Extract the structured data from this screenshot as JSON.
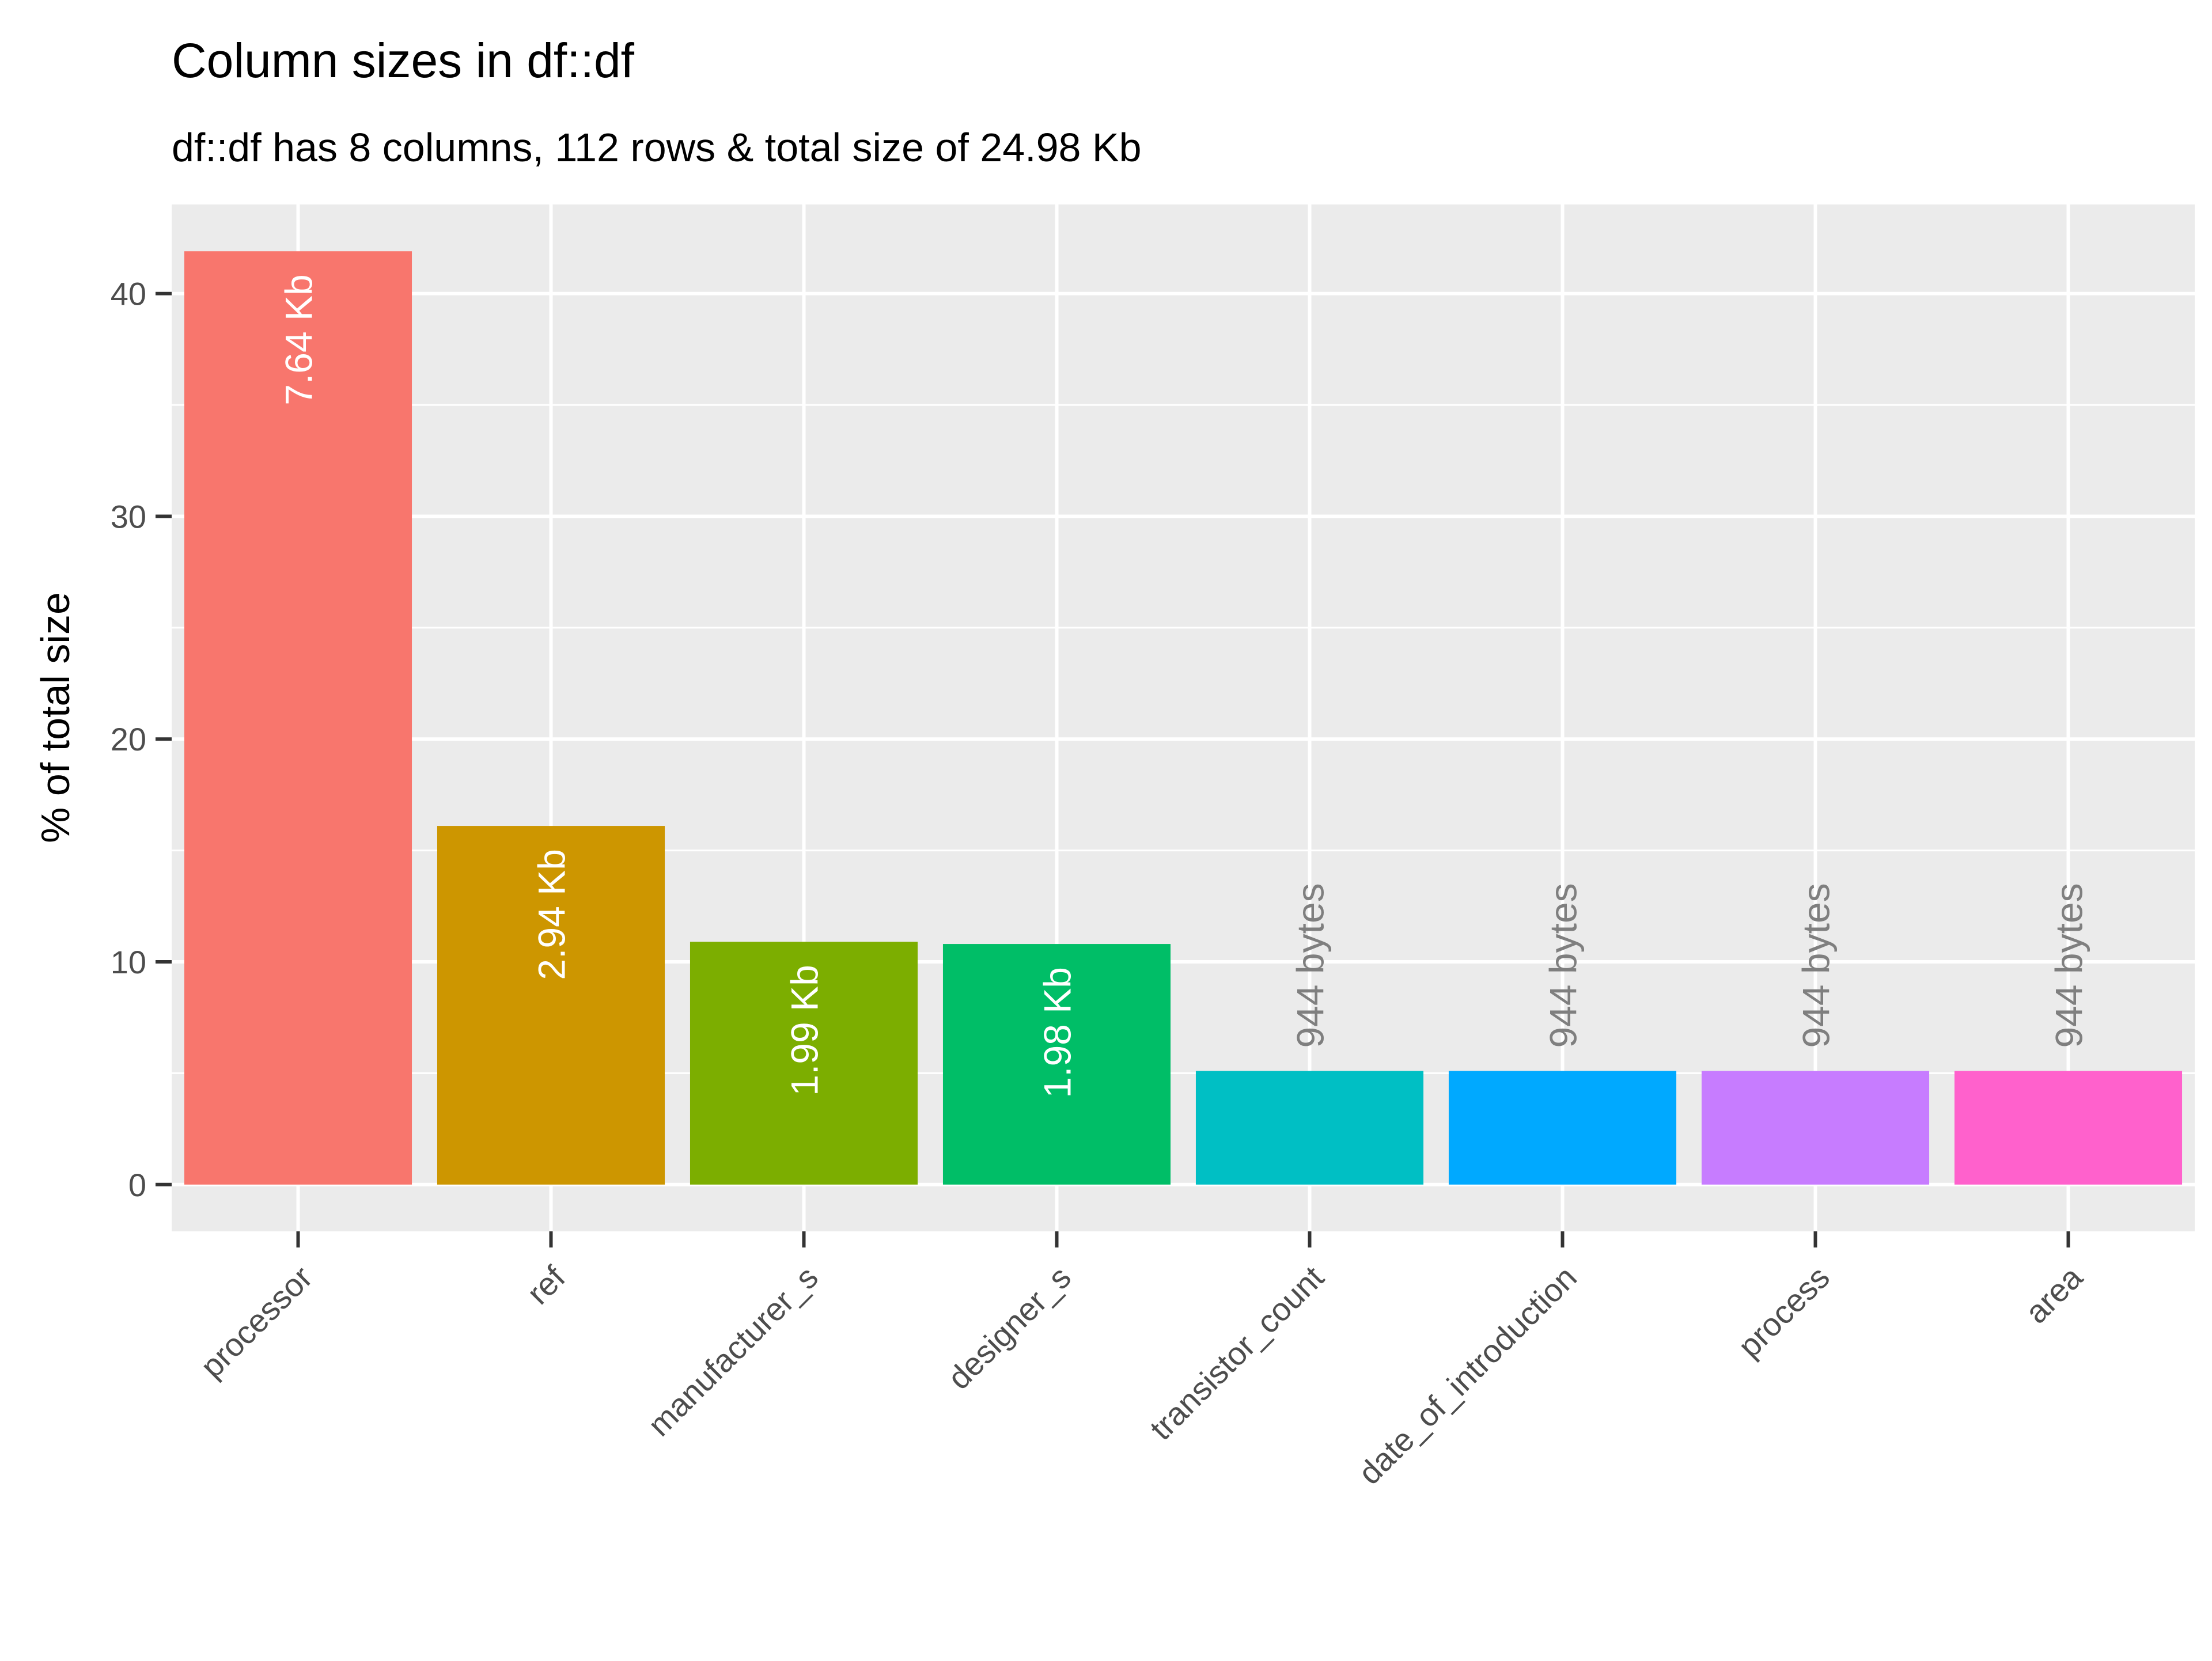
{
  "chart_data": {
    "type": "bar",
    "title": "Column sizes in df::df",
    "subtitle": "df::df has 8 columns, 112 rows & total size of 24.98 Kb",
    "xlabel": "",
    "ylabel": "% of total size",
    "ylim": [
      -2.1,
      44
    ],
    "yticks": [
      0,
      10,
      20,
      30,
      40
    ],
    "ytick_labels": [
      "0",
      "10",
      "20",
      "30",
      "40"
    ],
    "grid": true,
    "legend": "none",
    "categories": [
      "processor",
      "ref",
      "manufacturer_s",
      "designer_s",
      "transistor_count",
      "date_of_introduction",
      "process",
      "area"
    ],
    "values": [
      41.9,
      16.1,
      10.9,
      10.8,
      5.1,
      5.1,
      5.1,
      5.1
    ],
    "labels": [
      "7.64 Kb",
      "2.94 Kb",
      "1.99 Kb",
      "1.98 Kb",
      "944 bytes",
      "944 bytes",
      "944 bytes",
      "944 bytes"
    ],
    "label_inside": [
      true,
      true,
      true,
      true,
      false,
      false,
      false,
      false
    ],
    "colors": [
      "#F8766D",
      "#CD9600",
      "#7CAE00",
      "#00BE67",
      "#00BFC4",
      "#00A9FF",
      "#C77CFF",
      "#FF61CC"
    ],
    "panel_color": "#EBEBEB",
    "grid_color": "#FFFFFF",
    "inside_label_color": "#FFFFFF",
    "outside_label_color": "#7F7F7F"
  }
}
